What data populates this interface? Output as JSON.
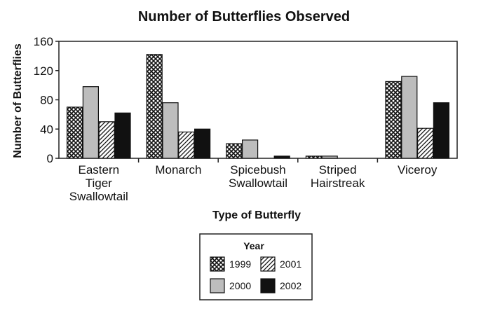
{
  "chart_data": {
    "type": "bar",
    "title": "Number of Butterflies Observed",
    "xlabel": "Type of Butterfly",
    "ylabel": "Number of Butterflies",
    "ylim": [
      0,
      160
    ],
    "yticks": [
      "0",
      "40",
      "80",
      "120",
      "160"
    ],
    "categories": [
      [
        "Eastern",
        "Tiger",
        "Swallowtail"
      ],
      [
        "Monarch"
      ],
      [
        "Spicebush",
        "Swallowtail"
      ],
      [
        "Striped",
        "Hairstreak"
      ],
      [
        "Viceroy"
      ]
    ],
    "legend": {
      "title": "Year",
      "placement": "bottom-center"
    },
    "series": [
      {
        "name": "1999",
        "fill": "crosshatch",
        "values": [
          70,
          142,
          20,
          3,
          105
        ]
      },
      {
        "name": "2000",
        "fill": "#bdbdbd",
        "values": [
          98,
          76,
          25,
          3,
          112
        ]
      },
      {
        "name": "2001",
        "fill": "diagonal-hatch",
        "values": [
          50,
          36,
          0,
          0,
          41
        ]
      },
      {
        "name": "2002",
        "fill": "#111111",
        "values": [
          62,
          40,
          3,
          0,
          76
        ]
      }
    ],
    "grid": false
  }
}
